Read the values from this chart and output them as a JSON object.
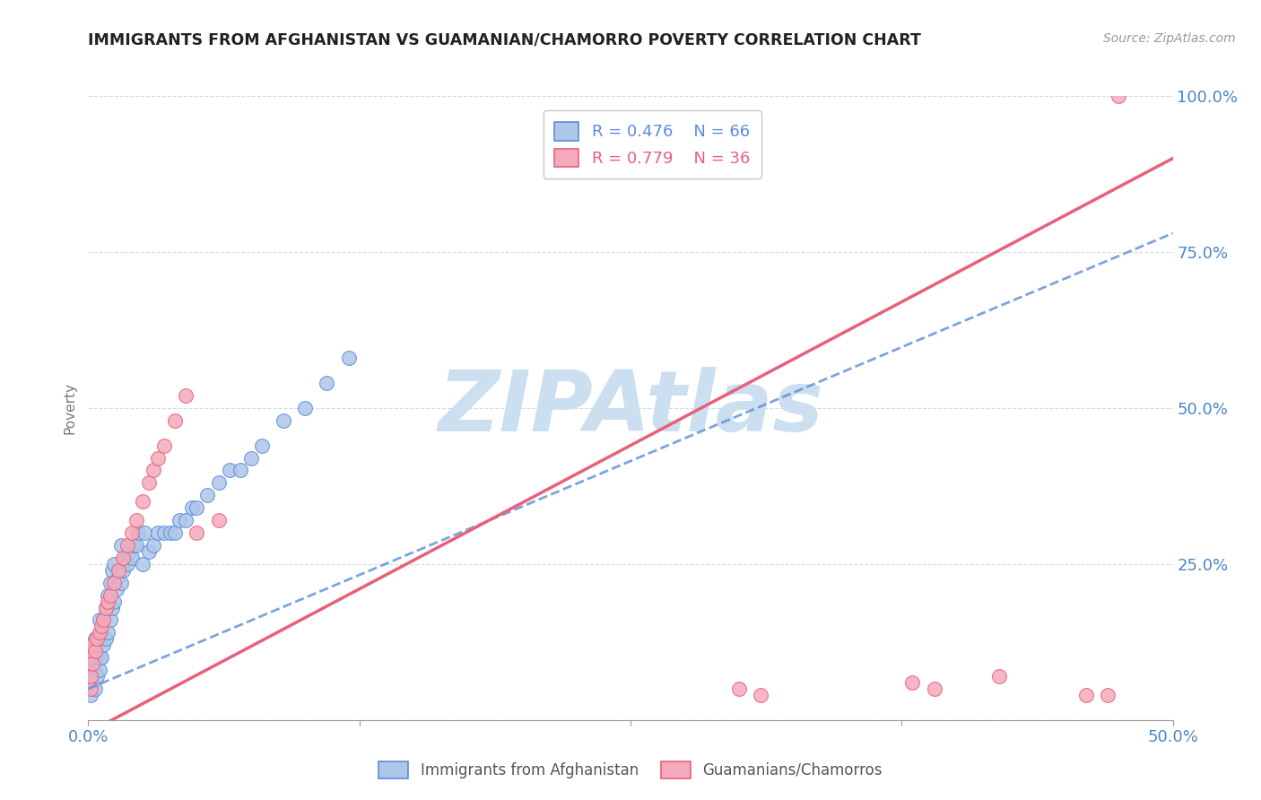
{
  "title": "IMMIGRANTS FROM AFGHANISTAN VS GUAMANIAN/CHAMORRO POVERTY CORRELATION CHART",
  "source_text": "Source: ZipAtlas.com",
  "ylabel": "Poverty",
  "xlabel": "",
  "xlim": [
    0,
    0.5
  ],
  "ylim": [
    0,
    1.0
  ],
  "xtick_vals": [
    0,
    0.125,
    0.25,
    0.375,
    0.5
  ],
  "xtick_labels_show": [
    "0.0%",
    "",
    "",
    "",
    "50.0%"
  ],
  "ytick_vals": [
    0,
    0.25,
    0.5,
    0.75,
    1.0
  ],
  "right_ytick_labels": [
    "",
    "25.0%",
    "50.0%",
    "75.0%",
    "100.0%"
  ],
  "legend1_R": "0.476",
  "legend1_N": "66",
  "legend2_R": "0.779",
  "legend2_N": "36",
  "legend1_label": "Immigrants from Afghanistan",
  "legend2_label": "Guamanians/Chamorros",
  "scatter_blue_color": "#aec6e8",
  "scatter_pink_color": "#f4aabb",
  "line_blue_color": "#5b8dd9",
  "line_pink_color": "#e8607a",
  "watermark_color": "#ccdff0",
  "background_color": "#ffffff",
  "grid_color": "#c8d8e8",
  "blue_scatter_x": [
    0.001,
    0.001,
    0.001,
    0.002,
    0.002,
    0.002,
    0.002,
    0.003,
    0.003,
    0.003,
    0.003,
    0.004,
    0.004,
    0.004,
    0.005,
    0.005,
    0.005,
    0.005,
    0.006,
    0.006,
    0.007,
    0.007,
    0.008,
    0.008,
    0.009,
    0.009,
    0.01,
    0.01,
    0.011,
    0.011,
    0.012,
    0.012,
    0.013,
    0.014,
    0.015,
    0.015,
    0.016,
    0.017,
    0.018,
    0.019,
    0.02,
    0.021,
    0.022,
    0.023,
    0.025,
    0.026,
    0.028,
    0.03,
    0.032,
    0.035,
    0.038,
    0.04,
    0.042,
    0.045,
    0.048,
    0.05,
    0.055,
    0.06,
    0.065,
    0.07,
    0.075,
    0.08,
    0.09,
    0.1,
    0.11,
    0.12
  ],
  "blue_scatter_y": [
    0.04,
    0.06,
    0.08,
    0.06,
    0.07,
    0.09,
    0.12,
    0.05,
    0.08,
    0.1,
    0.13,
    0.07,
    0.1,
    0.12,
    0.08,
    0.1,
    0.13,
    0.16,
    0.1,
    0.14,
    0.12,
    0.16,
    0.13,
    0.18,
    0.14,
    0.2,
    0.16,
    0.22,
    0.18,
    0.24,
    0.19,
    0.25,
    0.21,
    0.23,
    0.22,
    0.28,
    0.24,
    0.26,
    0.25,
    0.27,
    0.26,
    0.28,
    0.28,
    0.3,
    0.25,
    0.3,
    0.27,
    0.28,
    0.3,
    0.3,
    0.3,
    0.3,
    0.32,
    0.32,
    0.34,
    0.34,
    0.36,
    0.38,
    0.4,
    0.4,
    0.42,
    0.44,
    0.48,
    0.5,
    0.54,
    0.58
  ],
  "pink_scatter_x": [
    0.001,
    0.001,
    0.001,
    0.002,
    0.002,
    0.003,
    0.004,
    0.005,
    0.006,
    0.007,
    0.008,
    0.009,
    0.01,
    0.012,
    0.014,
    0.016,
    0.018,
    0.02,
    0.022,
    0.025,
    0.028,
    0.03,
    0.032,
    0.035,
    0.04,
    0.045,
    0.05,
    0.06,
    0.3,
    0.31,
    0.38,
    0.39,
    0.42,
    0.46,
    0.47,
    0.475
  ],
  "pink_scatter_y": [
    0.05,
    0.07,
    0.1,
    0.09,
    0.12,
    0.11,
    0.13,
    0.14,
    0.15,
    0.16,
    0.18,
    0.19,
    0.2,
    0.22,
    0.24,
    0.26,
    0.28,
    0.3,
    0.32,
    0.35,
    0.38,
    0.4,
    0.42,
    0.44,
    0.48,
    0.52,
    0.3,
    0.32,
    0.05,
    0.04,
    0.06,
    0.05,
    0.07,
    0.04,
    0.04,
    1.0
  ],
  "blue_line_x0": 0.0,
  "blue_line_x1": 0.5,
  "blue_line_y0": 0.05,
  "blue_line_y1": 0.78,
  "pink_line_x0": 0.0,
  "pink_line_x1": 0.5,
  "pink_line_y0": -0.02,
  "pink_line_y1": 0.9
}
